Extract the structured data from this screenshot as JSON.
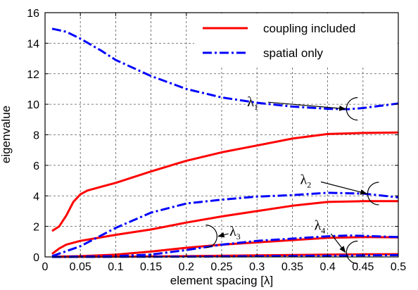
{
  "chart_data": {
    "type": "line",
    "xlabel": "element spacing [λ]",
    "ylabel": "eigenvalue",
    "xlim": [
      0,
      0.5
    ],
    "ylim": [
      0,
      16
    ],
    "xticks": [
      "0",
      "0.05",
      "0.1",
      "0.15",
      "0.2",
      "0.25",
      "0.3",
      "0.35",
      "0.4",
      "0.45",
      "0.5"
    ],
    "yticks": [
      "0",
      "2",
      "4",
      "6",
      "8",
      "10",
      "12",
      "14",
      "16"
    ],
    "grid": true,
    "legend_position": "top-right",
    "colors": {
      "coupling": "#ff0000",
      "spatial": "#0000ff"
    },
    "legend": [
      {
        "label": "coupling included",
        "style": "solid",
        "color": "#ff0000"
      },
      {
        "label": "spatial only",
        "style": "dashdot",
        "color": "#0000ff"
      }
    ],
    "series": [
      {
        "name": "coupling included",
        "group": "coupling",
        "eigen": "λ1",
        "points": [
          [
            0.01,
            1.7
          ],
          [
            0.02,
            2.0
          ],
          [
            0.03,
            2.7
          ],
          [
            0.04,
            3.6
          ],
          [
            0.05,
            4.1
          ],
          [
            0.06,
            4.35
          ],
          [
            0.08,
            4.6
          ],
          [
            0.1,
            4.85
          ],
          [
            0.15,
            5.6
          ],
          [
            0.2,
            6.3
          ],
          [
            0.25,
            6.85
          ],
          [
            0.3,
            7.3
          ],
          [
            0.35,
            7.75
          ],
          [
            0.4,
            8.05
          ],
          [
            0.45,
            8.12
          ],
          [
            0.5,
            8.15
          ]
        ]
      },
      {
        "name": "coupling included",
        "group": "coupling",
        "eigen": "λ2",
        "points": [
          [
            0.01,
            0.2
          ],
          [
            0.02,
            0.55
          ],
          [
            0.03,
            0.8
          ],
          [
            0.05,
            1.05
          ],
          [
            0.1,
            1.45
          ],
          [
            0.15,
            1.8
          ],
          [
            0.2,
            2.25
          ],
          [
            0.25,
            2.65
          ],
          [
            0.3,
            3.0
          ],
          [
            0.35,
            3.35
          ],
          [
            0.4,
            3.6
          ],
          [
            0.45,
            3.65
          ],
          [
            0.5,
            3.65
          ]
        ]
      },
      {
        "name": "coupling included",
        "group": "coupling",
        "eigen": "λ3",
        "points": [
          [
            0.01,
            0.02
          ],
          [
            0.05,
            0.05
          ],
          [
            0.1,
            0.15
          ],
          [
            0.15,
            0.35
          ],
          [
            0.2,
            0.6
          ],
          [
            0.25,
            0.8
          ],
          [
            0.3,
            0.95
          ],
          [
            0.35,
            1.1
          ],
          [
            0.4,
            1.25
          ],
          [
            0.45,
            1.3
          ],
          [
            0.5,
            1.28
          ]
        ]
      },
      {
        "name": "coupling included",
        "group": "coupling",
        "eigen": "λ4",
        "points": [
          [
            0.01,
            0.0
          ],
          [
            0.1,
            0.02
          ],
          [
            0.2,
            0.05
          ],
          [
            0.3,
            0.1
          ],
          [
            0.4,
            0.15
          ],
          [
            0.45,
            0.17
          ],
          [
            0.5,
            0.18
          ]
        ]
      },
      {
        "name": "spatial only",
        "group": "spatial",
        "eigen": "λ1",
        "points": [
          [
            0.01,
            14.95
          ],
          [
            0.03,
            14.75
          ],
          [
            0.05,
            14.3
          ],
          [
            0.08,
            13.5
          ],
          [
            0.1,
            12.9
          ],
          [
            0.15,
            11.85
          ],
          [
            0.2,
            11.0
          ],
          [
            0.25,
            10.45
          ],
          [
            0.3,
            10.1
          ],
          [
            0.35,
            9.85
          ],
          [
            0.4,
            9.7
          ],
          [
            0.43,
            9.68
          ],
          [
            0.45,
            9.75
          ],
          [
            0.5,
            10.05
          ]
        ]
      },
      {
        "name": "spatial only",
        "group": "spatial",
        "eigen": "λ2",
        "points": [
          [
            0.01,
            0.05
          ],
          [
            0.05,
            0.7
          ],
          [
            0.1,
            1.9
          ],
          [
            0.15,
            2.9
          ],
          [
            0.2,
            3.5
          ],
          [
            0.25,
            3.75
          ],
          [
            0.3,
            3.95
          ],
          [
            0.35,
            4.05
          ],
          [
            0.4,
            4.2
          ],
          [
            0.45,
            4.15
          ],
          [
            0.5,
            3.9
          ]
        ]
      },
      {
        "name": "spatial only",
        "group": "spatial",
        "eigen": "λ3",
        "points": [
          [
            0.01,
            0.0
          ],
          [
            0.1,
            0.05
          ],
          [
            0.15,
            0.15
          ],
          [
            0.2,
            0.45
          ],
          [
            0.25,
            0.8
          ],
          [
            0.3,
            1.05
          ],
          [
            0.35,
            1.2
          ],
          [
            0.4,
            1.35
          ],
          [
            0.43,
            1.4
          ],
          [
            0.45,
            1.38
          ],
          [
            0.5,
            1.3
          ]
        ]
      },
      {
        "name": "spatial only",
        "group": "spatial",
        "eigen": "λ4",
        "points": [
          [
            0.01,
            0.0
          ],
          [
            0.2,
            0.02
          ],
          [
            0.35,
            0.06
          ],
          [
            0.45,
            0.1
          ],
          [
            0.5,
            0.12
          ]
        ]
      }
    ],
    "annotations": [
      {
        "base": "λ",
        "sub": "1",
        "anchor": [
          0.3,
          10.2
        ],
        "target": [
          0.425,
          9.7
        ]
      },
      {
        "base": "λ",
        "sub": "2",
        "anchor": [
          0.375,
          5.1
        ],
        "target": [
          0.455,
          4.15
        ]
      },
      {
        "base": "λ",
        "sub": "3",
        "anchor": [
          0.275,
          1.7
        ],
        "target": [
          0.245,
          1.35
        ]
      },
      {
        "base": "λ",
        "sub": "4",
        "anchor": [
          0.395,
          2.1
        ],
        "target": [
          0.425,
          0.3
        ]
      }
    ]
  }
}
